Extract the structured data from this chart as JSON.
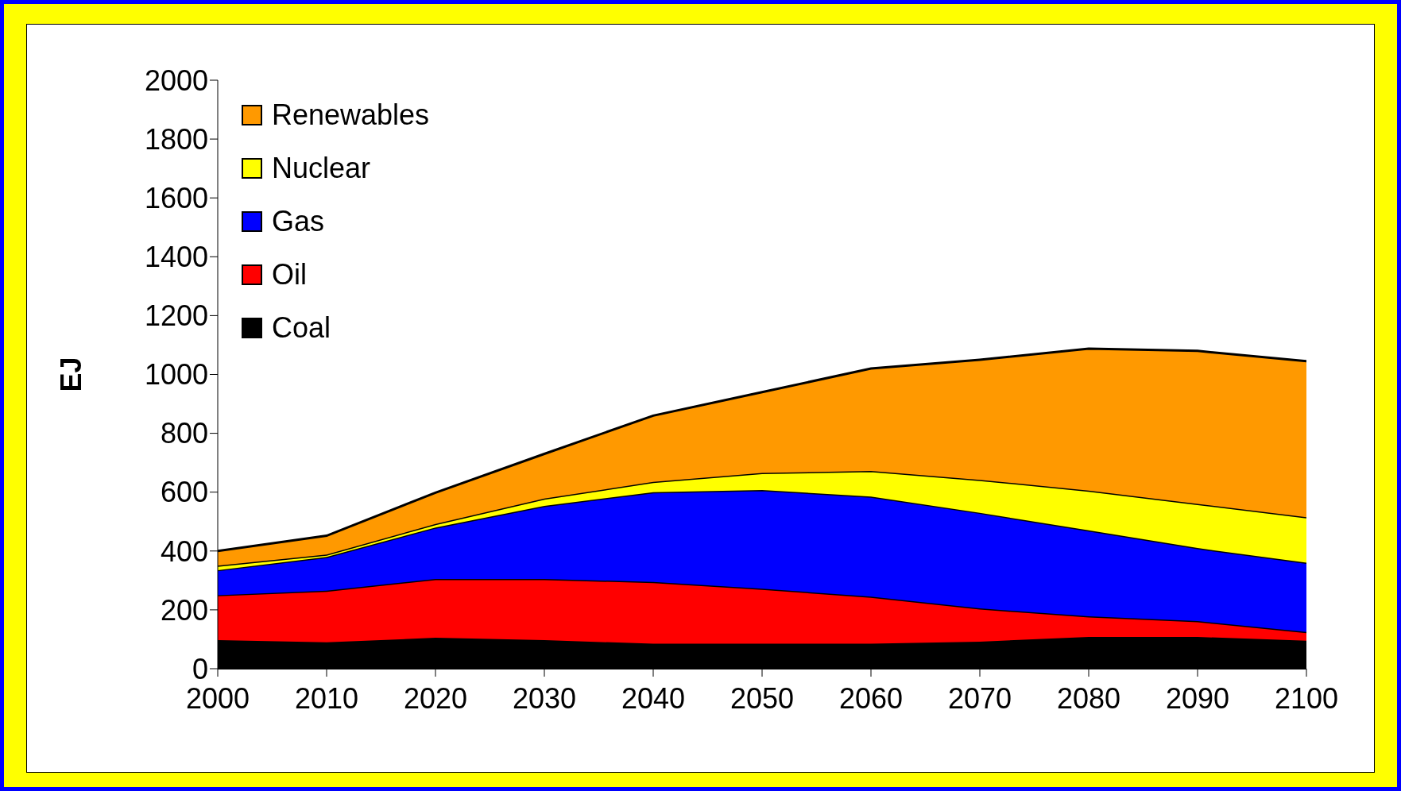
{
  "chart_data": {
    "type": "area",
    "stacked": true,
    "ylabel": "EJ",
    "x": [
      2000,
      2010,
      2020,
      2030,
      2040,
      2050,
      2060,
      2070,
      2080,
      2090,
      2100
    ],
    "xlim": [
      2000,
      2100
    ],
    "xticks": [
      2000,
      2010,
      2020,
      2030,
      2040,
      2050,
      2060,
      2070,
      2080,
      2090,
      2100
    ],
    "ylim": [
      0,
      2000
    ],
    "yticks": [
      0,
      200,
      400,
      600,
      800,
      1000,
      1200,
      1400,
      1600,
      1800,
      2000
    ],
    "grid": false,
    "legend": "top left",
    "series": [
      {
        "name": "Coal",
        "color": "#000000",
        "values": [
          97,
          90,
          105,
          97,
          85,
          85,
          85,
          92,
          108,
          108,
          95
        ]
      },
      {
        "name": "Oil",
        "color": "#ff0000",
        "values": [
          153,
          175,
          200,
          208,
          210,
          187,
          160,
          113,
          70,
          54,
          30
        ]
      },
      {
        "name": "Gas",
        "color": "#0000ff",
        "values": [
          85,
          115,
          175,
          248,
          305,
          335,
          340,
          325,
          292,
          248,
          235
        ]
      },
      {
        "name": "Nuclear",
        "color": "#ffff00",
        "values": [
          15,
          8,
          12,
          25,
          35,
          58,
          87,
          112,
          135,
          150,
          155
        ]
      },
      {
        "name": "Renewables",
        "color": "#ff9900",
        "values": [
          50,
          64,
          106,
          152,
          225,
          275,
          348,
          408,
          483,
          520,
          530
        ]
      }
    ]
  }
}
